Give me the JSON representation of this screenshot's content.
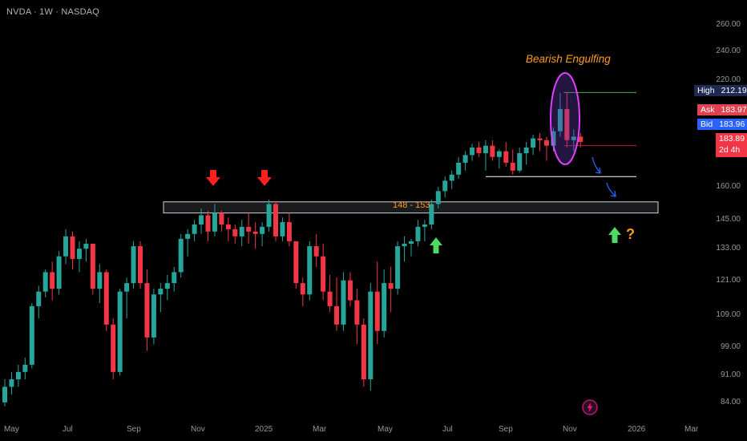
{
  "header": {
    "symbol": "NVDA · 1W · NASDAQ"
  },
  "annotations": {
    "pattern_label": "Bearish Engulfing",
    "zone_label": "148 - 153",
    "question_mark": "?"
  },
  "price_labels": {
    "high_label": "High",
    "high_value": "212.19",
    "ask_label": "Ask",
    "ask_value": "183.97",
    "bid_label": "Bid",
    "bid_value": "183.96",
    "last_value": "183.89",
    "countdown": "2d 4h"
  },
  "colors": {
    "up": "#26a69a",
    "down": "#f23645",
    "background": "#000000",
    "zone_border": "#d1d4dc",
    "green_arrow": "#4cd964",
    "red_arrow": "#ff1f1f",
    "blue_arrow": "#2962ff",
    "ellipse": "#e040fb",
    "high_line": "#4caf50",
    "low_line": "#b71c2c",
    "support_line": "#ffffff",
    "orange": "#ff9a1f"
  },
  "chart_data": {
    "type": "candlestick",
    "title": "NVDA · 1W · NASDAQ",
    "y_scale": "log",
    "ylim": [
      81,
      268
    ],
    "y_ticks": [
      "260.00",
      "240.00",
      "220.00",
      "160.00",
      "145.00",
      "133.00",
      "121.00",
      "109.00",
      "99.00",
      "91.00",
      "84.00"
    ],
    "x_labels": [
      "May",
      "Jul",
      "Sep",
      "Nov",
      "2025",
      "Mar",
      "May",
      "Jul",
      "Sep",
      "Nov",
      "2026",
      "Mar"
    ],
    "candles": [
      [
        84,
        90,
        83,
        88
      ],
      [
        88,
        92,
        86,
        90
      ],
      [
        90,
        94,
        88,
        92
      ],
      [
        92,
        96,
        90,
        94
      ],
      [
        94,
        113,
        93,
        112
      ],
      [
        112,
        119,
        108,
        117
      ],
      [
        117,
        125,
        115,
        124
      ],
      [
        124,
        128,
        114,
        118
      ],
      [
        118,
        132,
        116,
        130
      ],
      [
        130,
        141,
        127,
        138
      ],
      [
        138,
        140,
        125,
        129
      ],
      [
        129,
        136,
        124,
        133
      ],
      [
        133,
        137,
        128,
        135
      ],
      [
        135,
        135,
        116,
        118
      ],
      [
        118,
        127,
        113,
        124
      ],
      [
        124,
        125,
        104,
        106
      ],
      [
        106,
        108,
        90,
        92
      ],
      [
        92,
        118,
        91,
        117
      ],
      [
        117,
        122,
        108,
        120
      ],
      [
        120,
        136,
        118,
        134
      ],
      [
        134,
        136,
        118,
        120
      ],
      [
        120,
        125,
        98,
        102
      ],
      [
        102,
        118,
        100,
        116
      ],
      [
        116,
        120,
        110,
        118
      ],
      [
        118,
        123,
        114,
        120
      ],
      [
        120,
        126,
        117,
        124
      ],
      [
        124,
        139,
        122,
        137
      ],
      [
        137,
        141,
        130,
        139
      ],
      [
        139,
        145,
        136,
        143
      ],
      [
        143,
        150,
        139,
        147
      ],
      [
        147,
        149,
        136,
        140
      ],
      [
        140,
        152,
        138,
        148
      ],
      [
        148,
        149,
        140,
        143
      ],
      [
        143,
        146,
        136,
        141
      ],
      [
        141,
        143,
        135,
        138
      ],
      [
        138,
        145,
        134,
        142
      ],
      [
        142,
        148,
        135,
        140
      ],
      [
        140,
        144,
        133,
        139
      ],
      [
        139,
        144,
        134,
        142
      ],
      [
        142,
        154,
        140,
        152
      ],
      [
        152,
        153,
        136,
        138
      ],
      [
        138,
        146,
        136,
        144
      ],
      [
        144,
        148,
        134,
        136
      ],
      [
        136,
        136,
        118,
        120
      ],
      [
        120,
        122,
        112,
        116
      ],
      [
        116,
        136,
        114,
        134
      ],
      [
        134,
        139,
        126,
        130
      ],
      [
        130,
        135,
        114,
        117
      ],
      [
        117,
        123,
        110,
        112
      ],
      [
        112,
        122,
        104,
        106
      ],
      [
        106,
        124,
        104,
        121
      ],
      [
        121,
        124,
        112,
        114
      ],
      [
        114,
        118,
        100,
        106
      ],
      [
        106,
        108,
        88,
        90
      ],
      [
        90,
        120,
        87,
        117
      ],
      [
        117,
        128,
        100,
        104
      ],
      [
        104,
        125,
        102,
        120
      ],
      [
        120,
        126,
        110,
        118
      ],
      [
        118,
        136,
        116,
        134
      ],
      [
        134,
        138,
        128,
        135
      ],
      [
        135,
        137,
        130,
        136
      ],
      [
        136,
        145,
        134,
        142
      ],
      [
        142,
        145,
        136,
        143
      ],
      [
        143,
        154,
        141,
        152
      ],
      [
        152,
        160,
        150,
        158
      ],
      [
        158,
        165,
        155,
        163
      ],
      [
        163,
        168,
        159,
        166
      ],
      [
        166,
        175,
        164,
        172
      ],
      [
        172,
        178,
        168,
        176
      ],
      [
        176,
        182,
        173,
        180
      ],
      [
        180,
        183,
        175,
        177
      ],
      [
        177,
        184,
        168,
        181
      ],
      [
        181,
        184,
        173,
        175
      ],
      [
        175,
        179,
        169,
        178
      ],
      [
        178,
        183,
        170,
        172
      ],
      [
        172,
        179,
        166,
        168
      ],
      [
        168,
        180,
        167,
        177
      ],
      [
        177,
        183,
        171,
        180
      ],
      [
        180,
        187,
        176,
        185
      ],
      [
        185,
        188,
        178,
        184
      ],
      [
        184,
        186,
        173,
        181
      ],
      [
        181,
        191,
        178,
        189
      ],
      [
        189,
        212,
        186,
        202
      ],
      [
        202,
        212,
        180,
        184
      ],
      [
        184,
        190,
        178,
        186
      ],
      [
        186,
        188,
        180,
        183
      ]
    ],
    "resistance_zone": [
      148,
      153
    ],
    "bearish_engulfing_high": 212.19,
    "pattern_low": 181,
    "support_level": 165
  }
}
